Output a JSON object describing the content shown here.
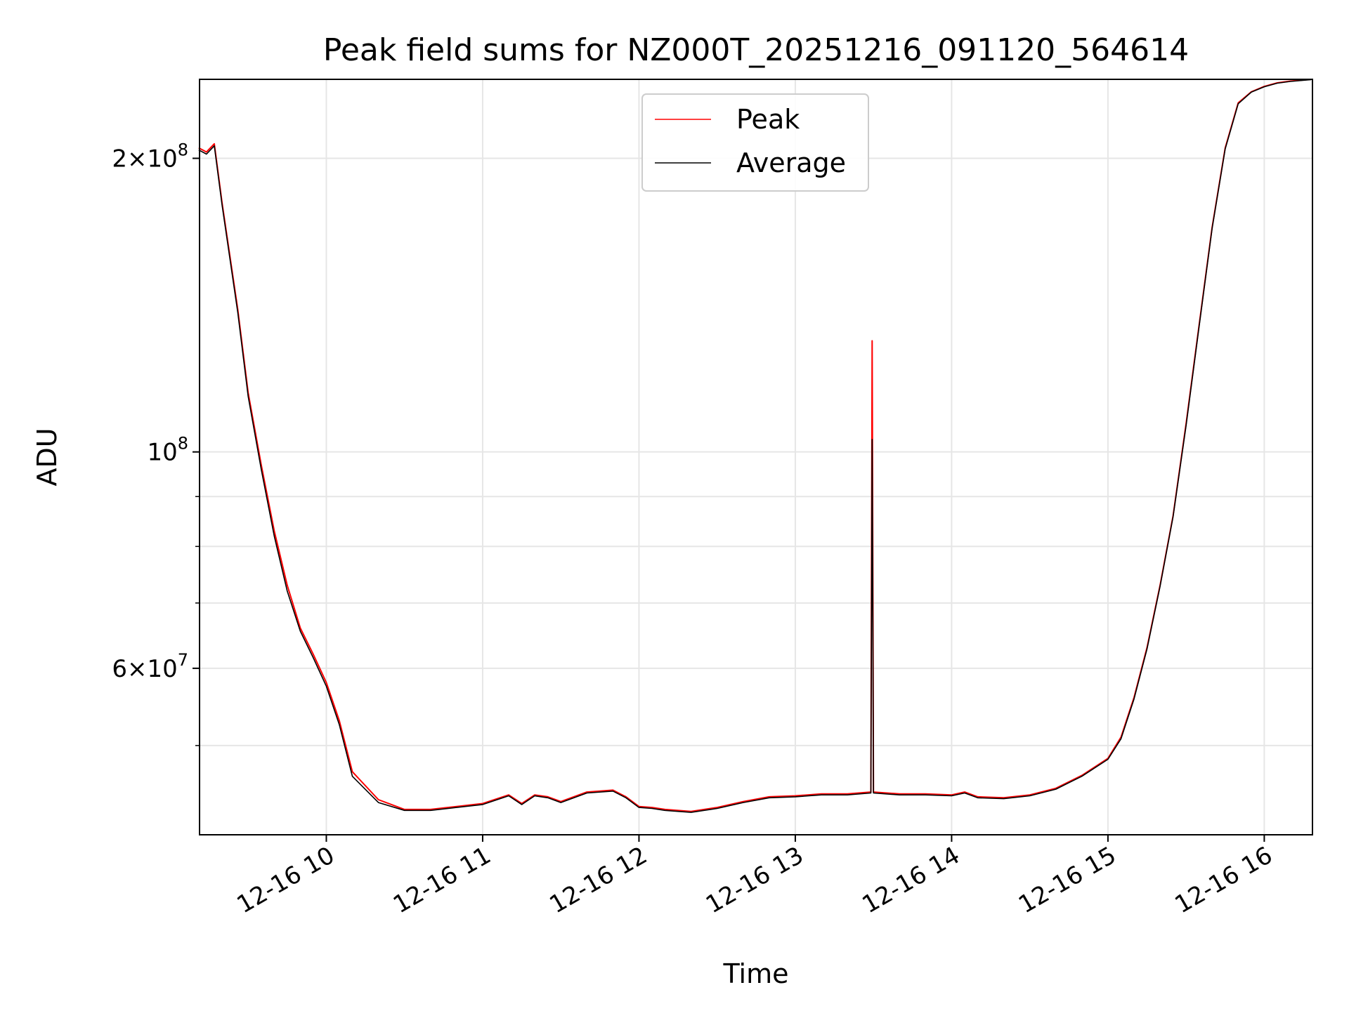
{
  "chart_data": {
    "type": "line",
    "title": "Peak field sums for NZ000T_20251216_091120_564614",
    "xlabel": "Time",
    "ylabel": "ADU",
    "yscale": "log",
    "ylim": [
      40500000,
      241000000
    ],
    "xlim": [
      "2025-12-16 09:11:20",
      "2025-12-16 16:18:30"
    ],
    "grid": true,
    "legend_position": "top-center",
    "x_ticks": [
      {
        "label": "12-16 10",
        "value": "2025-12-16 10:00"
      },
      {
        "label": "12-16 11",
        "value": "2025-12-16 11:00"
      },
      {
        "label": "12-16 12",
        "value": "2025-12-16 12:00"
      },
      {
        "label": "12-16 13",
        "value": "2025-12-16 13:00"
      },
      {
        "label": "12-16 14",
        "value": "2025-12-16 14:00"
      },
      {
        "label": "12-16 15",
        "value": "2025-12-16 15:00"
      },
      {
        "label": "12-16 16",
        "value": "2025-12-16 16:00"
      }
    ],
    "y_ticks": [
      {
        "base": "2",
        "exp": "8",
        "value": 200000000
      },
      {
        "base": "",
        "exp": "8",
        "value": 100000000
      },
      {
        "base": "6",
        "exp": "7",
        "value": 60000000
      }
    ],
    "y_minor_ticks": [
      50000000,
      70000000,
      80000000,
      90000000
    ],
    "series": [
      {
        "name": "Peak",
        "color": "#ff0000",
        "x": [
          "09:11",
          "09:14",
          "09:17",
          "09:20",
          "09:26",
          "09:30",
          "09:35",
          "09:40",
          "09:45",
          "09:50",
          "09:55",
          "10:00",
          "10:05",
          "10:10",
          "10:20",
          "10:30",
          "10:40",
          "10:50",
          "11:00",
          "11:10",
          "11:15",
          "11:20",
          "11:25",
          "11:30",
          "11:40",
          "11:50",
          "11:55",
          "12:00",
          "12:05",
          "12:10",
          "12:20",
          "12:30",
          "12:40",
          "12:50",
          "13:00",
          "13:10",
          "13:20",
          "13:29",
          "13:29:30",
          "13:30",
          "13:40",
          "13:50",
          "14:00",
          "14:05",
          "14:10",
          "14:20",
          "14:30",
          "14:40",
          "14:50",
          "15:00",
          "15:05",
          "15:10",
          "15:15",
          "15:20",
          "15:25",
          "15:30",
          "15:35",
          "15:40",
          "15:45",
          "15:50",
          "15:55",
          "16:00",
          "16:05",
          "16:10",
          "16:18"
        ],
        "values": [
          205000000,
          203000000,
          207000000,
          180000000,
          140000000,
          115000000,
          97000000,
          83000000,
          73000000,
          66000000,
          62000000,
          58000000,
          53000000,
          47000000,
          44000000,
          43000000,
          43000000,
          43300000,
          43600000,
          44500000,
          43600000,
          44500000,
          44300000,
          43800000,
          44800000,
          45000000,
          44300000,
          43300000,
          43200000,
          43000000,
          42800000,
          43200000,
          43800000,
          44300000,
          44400000,
          44600000,
          44600000,
          44800000,
          130000000,
          44800000,
          44600000,
          44600000,
          44500000,
          44800000,
          44300000,
          44200000,
          44500000,
          45200000,
          46600000,
          48500000,
          51000000,
          56000000,
          63000000,
          73000000,
          86000000,
          107000000,
          135000000,
          170000000,
          205000000,
          228000000,
          234000000,
          237000000,
          239000000,
          240000000,
          241000000
        ]
      },
      {
        "name": "Average",
        "color": "#000000",
        "x": [
          "09:11",
          "09:14",
          "09:17",
          "09:20",
          "09:26",
          "09:30",
          "09:35",
          "09:40",
          "09:45",
          "09:50",
          "09:55",
          "10:00",
          "10:05",
          "10:10",
          "10:20",
          "10:30",
          "10:40",
          "10:50",
          "11:00",
          "11:10",
          "11:15",
          "11:20",
          "11:25",
          "11:30",
          "11:40",
          "11:50",
          "11:55",
          "12:00",
          "12:05",
          "12:10",
          "12:20",
          "12:30",
          "12:40",
          "12:50",
          "13:00",
          "13:10",
          "13:20",
          "13:29",
          "13:29:30",
          "13:30",
          "13:40",
          "13:50",
          "14:00",
          "14:05",
          "14:10",
          "14:20",
          "14:30",
          "14:40",
          "14:50",
          "15:00",
          "15:05",
          "15:10",
          "15:15",
          "15:20",
          "15:25",
          "15:30",
          "15:35",
          "15:40",
          "15:45",
          "15:50",
          "15:55",
          "16:00",
          "16:05",
          "16:10",
          "16:18"
        ],
        "values": [
          204000000,
          202000000,
          206000000,
          179000000,
          139000000,
          114000000,
          96000000,
          82000000,
          72000000,
          65500000,
          61500000,
          57500000,
          52500000,
          46500000,
          43700000,
          42900000,
          42900000,
          43200000,
          43500000,
          44400000,
          43500000,
          44400000,
          44200000,
          43700000,
          44700000,
          44900000,
          44200000,
          43200000,
          43100000,
          42900000,
          42700000,
          43100000,
          43700000,
          44200000,
          44300000,
          44500000,
          44500000,
          44700000,
          103000000,
          44700000,
          44500000,
          44500000,
          44400000,
          44700000,
          44200000,
          44100000,
          44400000,
          45100000,
          46500000,
          48400000,
          50800000,
          55800000,
          62800000,
          72800000,
          85800000,
          106500000,
          134500000,
          169500000,
          204500000,
          227500000,
          233800000,
          236800000,
          238800000,
          239800000,
          240800000
        ]
      }
    ]
  }
}
